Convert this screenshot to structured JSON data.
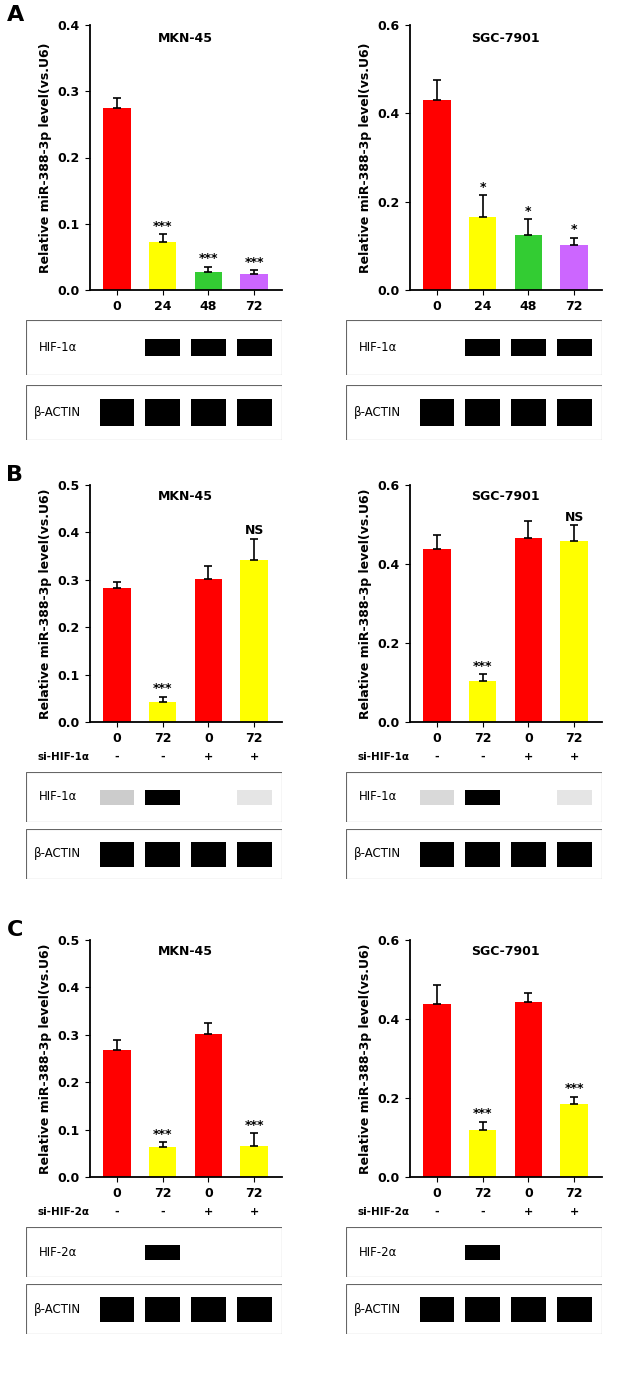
{
  "chart_data": [
    {
      "panel": "A",
      "type": "bar",
      "title": "MKN-45",
      "y_label": "Relative miR-388-3p level(vs.U6)",
      "categories": [
        "0",
        "24",
        "48",
        "72"
      ],
      "values": [
        0.275,
        0.072,
        0.027,
        0.024
      ],
      "errors": [
        0.015,
        0.012,
        0.008,
        0.006
      ],
      "colors": [
        "#ff0000",
        "#ffff00",
        "#33cc33",
        "#cc66ff"
      ],
      "significance": [
        null,
        "***",
        "***",
        "***"
      ],
      "ylim": [
        0,
        0.4
      ],
      "yticks": [
        0.0,
        0.1,
        0.2,
        0.3,
        0.4
      ],
      "blot": [
        {
          "label": "HIF-1α",
          "bands": [
            0,
            1,
            1,
            1
          ]
        },
        {
          "label": "β-ACTIN",
          "bands": [
            1,
            1,
            1,
            1
          ]
        }
      ]
    },
    {
      "panel": "A",
      "type": "bar",
      "title": "SGC-7901",
      "y_label": "Relative miR-388-3p level(vs.U6)",
      "categories": [
        "0",
        "24",
        "48",
        "72"
      ],
      "values": [
        0.43,
        0.165,
        0.125,
        0.103
      ],
      "errors": [
        0.045,
        0.05,
        0.035,
        0.015
      ],
      "colors": [
        "#ff0000",
        "#ffff00",
        "#33cc33",
        "#cc66ff"
      ],
      "significance": [
        null,
        "*",
        "*",
        "*"
      ],
      "ylim": [
        0,
        0.6
      ],
      "yticks": [
        0.0,
        0.2,
        0.4,
        0.6
      ],
      "blot": [
        {
          "label": "HIF-1α",
          "bands": [
            0,
            1,
            1,
            1
          ]
        },
        {
          "label": "β-ACTIN",
          "bands": [
            1,
            1,
            1,
            1
          ]
        }
      ]
    },
    {
      "panel": "B",
      "type": "bar",
      "title": "MKN-45",
      "y_label": "Relative miR-388-3p level(vs.U6)",
      "categories": [
        "0",
        "72",
        "0",
        "72"
      ],
      "values": [
        0.283,
        0.043,
        0.302,
        0.342
      ],
      "errors": [
        0.012,
        0.01,
        0.028,
        0.045
      ],
      "colors": [
        "#ff0000",
        "#ffff00",
        "#ff0000",
        "#ffff00"
      ],
      "significance": [
        null,
        "***",
        null,
        "NS"
      ],
      "ylim": [
        0,
        0.5
      ],
      "yticks": [
        0.0,
        0.1,
        0.2,
        0.3,
        0.4,
        0.5
      ],
      "treatment": {
        "label": "si-HIF-1α",
        "signs": [
          "-",
          "-",
          "+",
          "+"
        ]
      },
      "blot": [
        {
          "label": "HIF-1α",
          "bands": [
            0.2,
            1,
            0,
            0.1
          ]
        },
        {
          "label": "β-ACTIN",
          "bands": [
            1,
            1,
            1,
            1
          ]
        }
      ]
    },
    {
      "panel": "B",
      "type": "bar",
      "title": "SGC-7901",
      "y_label": "Relative miR-388-3p level(vs.U6)",
      "categories": [
        "0",
        "72",
        "0",
        "72"
      ],
      "values": [
        0.438,
        0.103,
        0.465,
        0.458
      ],
      "errors": [
        0.035,
        0.018,
        0.045,
        0.04
      ],
      "colors": [
        "#ff0000",
        "#ffff00",
        "#ff0000",
        "#ffff00"
      ],
      "significance": [
        null,
        "***",
        null,
        "NS"
      ],
      "ylim": [
        0,
        0.6
      ],
      "yticks": [
        0.0,
        0.2,
        0.4,
        0.6
      ],
      "treatment": {
        "label": "si-HIF-1α",
        "signs": [
          "-",
          "-",
          "+",
          "+"
        ]
      },
      "blot": [
        {
          "label": "HIF-1α",
          "bands": [
            0.15,
            1,
            0,
            0.1
          ]
        },
        {
          "label": "β-ACTIN",
          "bands": [
            1,
            1,
            1,
            1
          ]
        }
      ]
    },
    {
      "panel": "C",
      "type": "bar",
      "title": "MKN-45",
      "y_label": "Relative miR-388-3p level(vs.U6)",
      "categories": [
        "0",
        "72",
        "0",
        "72"
      ],
      "values": [
        0.268,
        0.063,
        0.302,
        0.065
      ],
      "errors": [
        0.022,
        0.01,
        0.022,
        0.028
      ],
      "colors": [
        "#ff0000",
        "#ffff00",
        "#ff0000",
        "#ffff00"
      ],
      "significance": [
        null,
        "***",
        null,
        "***"
      ],
      "ylim": [
        0,
        0.5
      ],
      "yticks": [
        0.0,
        0.1,
        0.2,
        0.3,
        0.4,
        0.5
      ],
      "treatment": {
        "label": "si-HIF-2α",
        "signs": [
          "-",
          "-",
          "+",
          "+"
        ]
      },
      "blot": [
        {
          "label": "HIF-2α",
          "bands": [
            0,
            1,
            0,
            0
          ]
        },
        {
          "label": "β-ACTIN",
          "bands": [
            1,
            1,
            1,
            1
          ]
        }
      ]
    },
    {
      "panel": "C",
      "type": "bar",
      "title": "SGC-7901",
      "y_label": "Relative miR-388-3p level(vs.U6)",
      "categories": [
        "0",
        "72",
        "0",
        "72"
      ],
      "values": [
        0.437,
        0.12,
        0.443,
        0.185
      ],
      "errors": [
        0.05,
        0.02,
        0.022,
        0.018
      ],
      "colors": [
        "#ff0000",
        "#ffff00",
        "#ff0000",
        "#ffff00"
      ],
      "significance": [
        null,
        "***",
        null,
        "***"
      ],
      "ylim": [
        0,
        0.6
      ],
      "yticks": [
        0.0,
        0.2,
        0.4,
        0.6
      ],
      "treatment": {
        "label": "si-HIF-2α",
        "signs": [
          "-",
          "-",
          "+",
          "+"
        ]
      },
      "blot": [
        {
          "label": "HIF-2α",
          "bands": [
            0,
            1,
            0,
            0
          ]
        },
        {
          "label": "β-ACTIN",
          "bands": [
            1,
            1,
            1,
            1
          ]
        }
      ]
    }
  ]
}
